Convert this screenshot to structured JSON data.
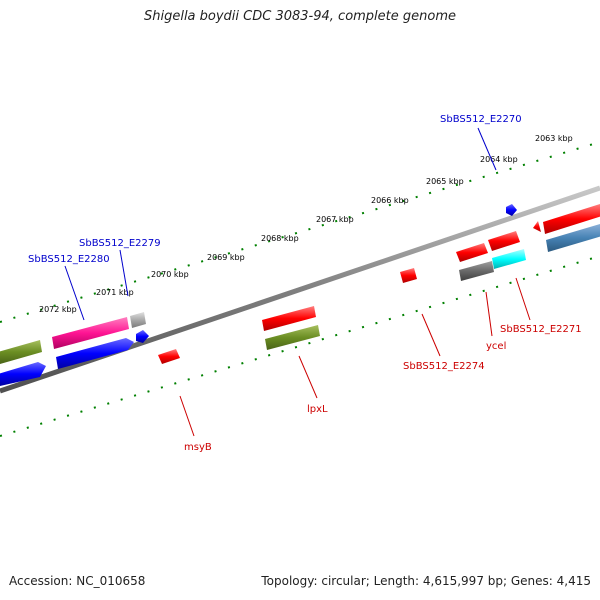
{
  "title": "Shigella boydii CDC 3083-94, complete genome",
  "footer": {
    "accession": "Accession: NC_010658",
    "summary": "Topology: circular; Length: 4,615,997 bp; Genes: 4,415"
  },
  "scale": {
    "ticks": [
      "2072 kbp",
      "2071 kbp",
      "2070 kbp",
      "2069 kbp",
      "2068 kbp",
      "2067 kbp",
      "2066 kbp",
      "2065 kbp",
      "2064 kbp",
      "2063 kbp"
    ]
  },
  "gene_labels": {
    "blue": [
      "SbBS512_E2280",
      "SbBS512_E2279",
      "SbBS512_E2270"
    ],
    "red": [
      "msyB",
      "lpxL",
      "SbBS512_E2274",
      "ycel",
      "SbBS512_E2271"
    ]
  },
  "colors": {
    "forward_strand_red": "#ff0000",
    "olive": "#6b8e23",
    "blue": "#0000ff",
    "pink": "#ff1493",
    "grey": "#a9a9a9",
    "steelblue": "#4682b4",
    "cyan": "#00ffff",
    "darkgrey": "#696969",
    "tick_green": "#008000",
    "backbone": "#808080",
    "label_blue": "#0000cc",
    "label_red": "#cc0000"
  }
}
